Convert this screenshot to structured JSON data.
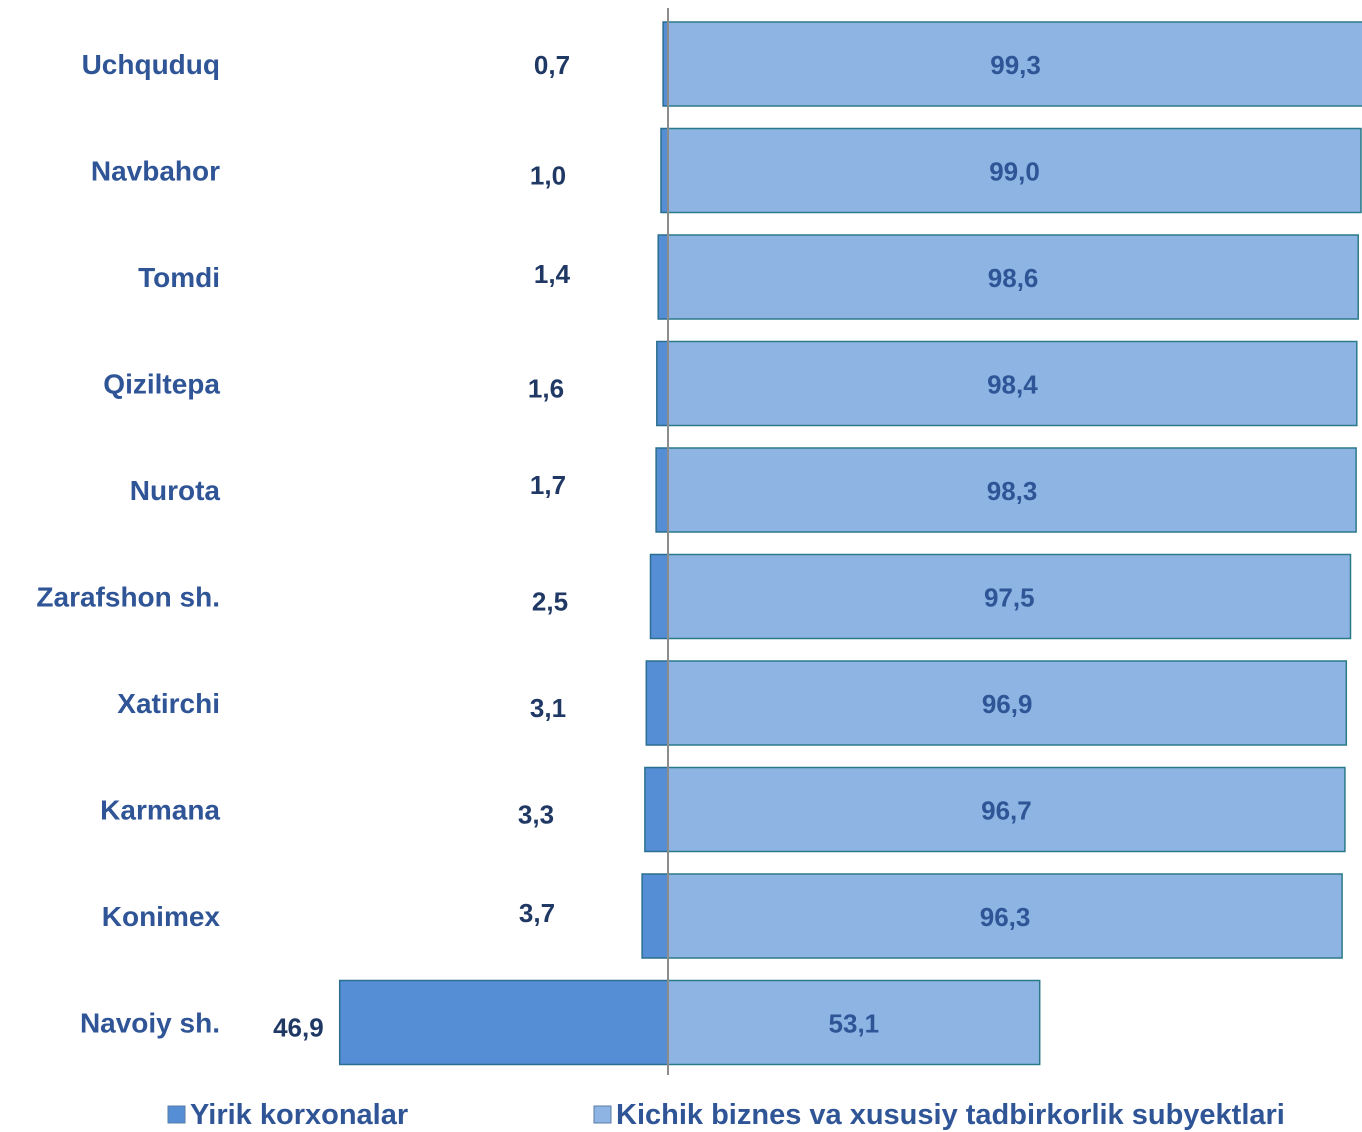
{
  "chart_data": {
    "type": "bar",
    "orientation": "horizontal",
    "stacked": true,
    "categories": [
      "Uchquduq",
      "Navbahor",
      "Tomdi",
      "Qiziltepa",
      "Nurota",
      "Zarafshon sh.",
      "Xatirchi",
      "Karmana",
      "Konimex",
      "Navoiy sh."
    ],
    "series": [
      {
        "name": "Yirik korxonalar",
        "values": [
          0.7,
          1.0,
          1.4,
          1.6,
          1.7,
          2.5,
          3.1,
          3.3,
          3.7,
          46.9
        ],
        "labels": [
          "0,7",
          "1,0",
          "1,4",
          "1,6",
          "1,7",
          "2,5",
          "3,1",
          "3,3",
          "3,7",
          "46,9"
        ],
        "color": "#558ed5"
      },
      {
        "name": "Kichik biznes va xususiy tadbirkorlik subyektlari",
        "values": [
          99.3,
          99.0,
          98.6,
          98.4,
          98.3,
          97.5,
          96.9,
          96.7,
          96.3,
          53.1
        ],
        "labels": [
          "99,3",
          "99,0",
          "98,6",
          "98,4",
          "98,3",
          "97,5",
          "96,9",
          "96,7",
          "96,3",
          "53,1"
        ],
        "color": "#8eb4e3"
      }
    ],
    "legend": "bottom",
    "grid": false
  }
}
